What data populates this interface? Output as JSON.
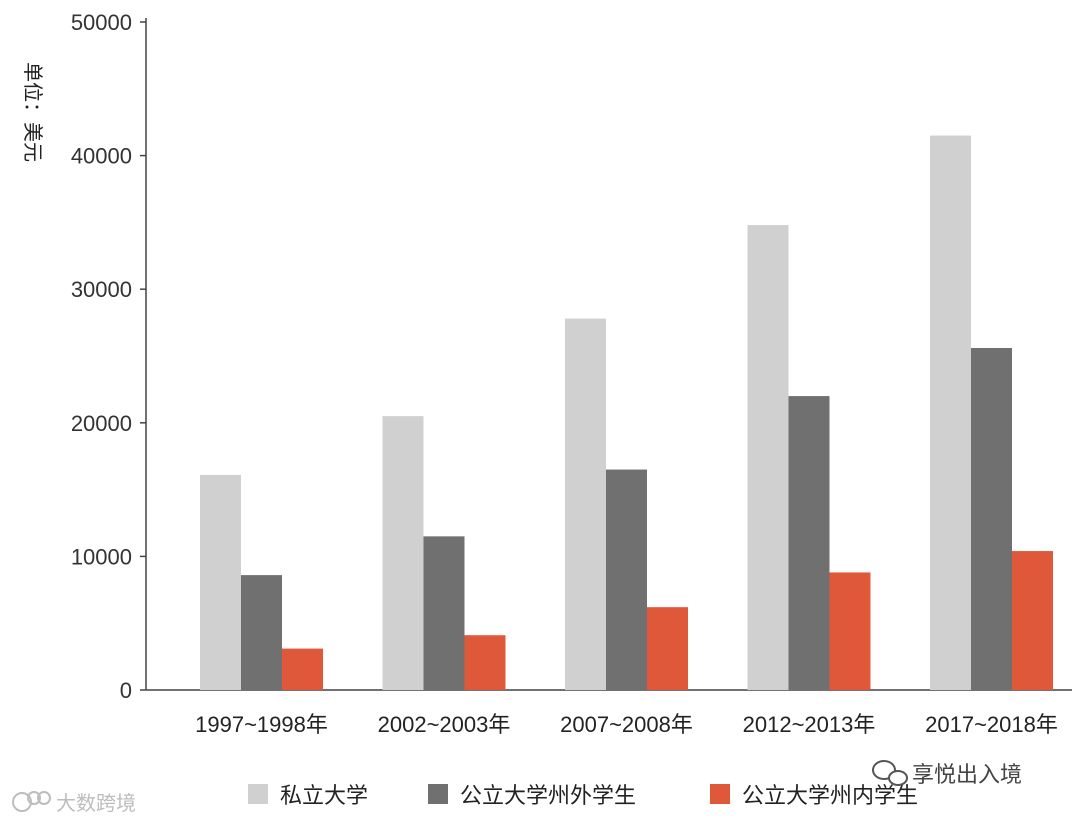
{
  "chart_data": {
    "type": "bar",
    "title": "",
    "ylabel": "单位：美元",
    "xlabel": "",
    "ylim": [
      0,
      50000
    ],
    "yticks": [
      0,
      10000,
      20000,
      30000,
      40000,
      50000
    ],
    "categories": [
      "1997~1998年",
      "2002~2003年",
      "2007~2008年",
      "2012~2013年",
      "2017~2018年"
    ],
    "series": [
      {
        "name": "私立大学",
        "color": "#d0d0d0",
        "values": [
          16100,
          20500,
          27800,
          34800,
          41500
        ]
      },
      {
        "name": "公立大学州外学生",
        "color": "#707070",
        "values": [
          8600,
          11500,
          16500,
          22000,
          25600
        ]
      },
      {
        "name": "公立大学州内学生",
        "color": "#e0583a",
        "values": [
          3100,
          4100,
          6200,
          8800,
          10400
        ]
      }
    ],
    "grid": false,
    "legend_position": "bottom"
  },
  "watermarks": {
    "left": "大数跨境",
    "right": "享悦出入境"
  }
}
